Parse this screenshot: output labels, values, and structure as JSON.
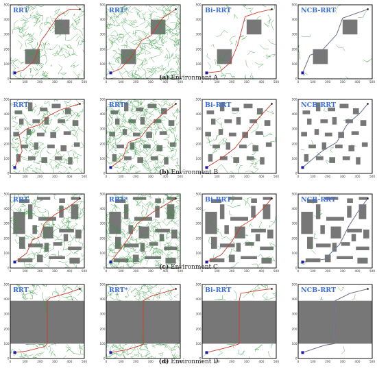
{
  "algorithms": [
    "RRT",
    "RRT*",
    "Bi-RRT",
    "NCB-RRT"
  ],
  "axis": {
    "ticks": [
      "0",
      "100",
      "200",
      "300",
      "400",
      "500"
    ]
  },
  "rows": [
    {
      "letter": "(a)",
      "name": "Environment A"
    },
    {
      "letter": "(b)",
      "name": "Environment B"
    },
    {
      "letter": "(c)",
      "name": "Environment C"
    },
    {
      "letter": "(d)",
      "name": "Environment D"
    }
  ],
  "colors": {
    "obstacle": "#777777",
    "tree": "#2e9a3a",
    "path": "#d23a2a",
    "ncb_path": "#3aa0d6",
    "start": "#1a1aa8",
    "goal": "#222222",
    "title": "#3b6fd8"
  },
  "environments": {
    "A": {
      "obstacles": [
        [
          300,
          300,
          100,
          100
        ],
        [
          100,
          100,
          100,
          100
        ]
      ]
    },
    "B": {
      "obstacles": [
        [
          30,
          400,
          50,
          25
        ],
        [
          120,
          420,
          30,
          60
        ],
        [
          200,
          420,
          50,
          25
        ],
        [
          280,
          440,
          60,
          30
        ],
        [
          370,
          400,
          40,
          40
        ],
        [
          60,
          330,
          30,
          40
        ],
        [
          150,
          340,
          50,
          25
        ],
        [
          230,
          330,
          30,
          50
        ],
        [
          320,
          340,
          50,
          25
        ],
        [
          420,
          320,
          40,
          40
        ],
        [
          20,
          250,
          40,
          30
        ],
        [
          110,
          260,
          30,
          40
        ],
        [
          180,
          250,
          50,
          25
        ],
        [
          270,
          240,
          40,
          40
        ],
        [
          360,
          260,
          50,
          25
        ],
        [
          70,
          170,
          50,
          25
        ],
        [
          160,
          160,
          30,
          50
        ],
        [
          250,
          170,
          50,
          25
        ],
        [
          340,
          150,
          40,
          40
        ],
        [
          430,
          180,
          40,
          30
        ],
        [
          40,
          80,
          30,
          50
        ],
        [
          120,
          90,
          50,
          25
        ],
        [
          210,
          70,
          40,
          40
        ],
        [
          300,
          90,
          50,
          25
        ],
        [
          390,
          60,
          30,
          50
        ]
      ]
    },
    "C": {
      "obstacles": [
        [
          60,
          440,
          70,
          25
        ],
        [
          180,
          460,
          90,
          20
        ],
        [
          330,
          440,
          40,
          30
        ],
        [
          410,
          460,
          60,
          20
        ],
        [
          20,
          230,
          80,
          150
        ],
        [
          120,
          330,
          30,
          100
        ],
        [
          190,
          320,
          120,
          25
        ],
        [
          330,
          340,
          30,
          80
        ],
        [
          410,
          330,
          50,
          100
        ],
        [
          150,
          230,
          30,
          60
        ],
        [
          220,
          200,
          70,
          80
        ],
        [
          330,
          240,
          100,
          25
        ],
        [
          360,
          180,
          30,
          50
        ],
        [
          440,
          200,
          40,
          60
        ],
        [
          60,
          130,
          40,
          80
        ],
        [
          120,
          140,
          100,
          25
        ],
        [
          230,
          110,
          30,
          60
        ],
        [
          290,
          150,
          60,
          25
        ],
        [
          390,
          120,
          90,
          25
        ],
        [
          50,
          40,
          100,
          25
        ],
        [
          180,
          40,
          40,
          50
        ],
        [
          260,
          60,
          110,
          20
        ],
        [
          400,
          30,
          70,
          40
        ]
      ]
    },
    "D": {
      "obstacles": [
        [
          0,
          100,
          500,
          290
        ]
      ]
    }
  }
}
